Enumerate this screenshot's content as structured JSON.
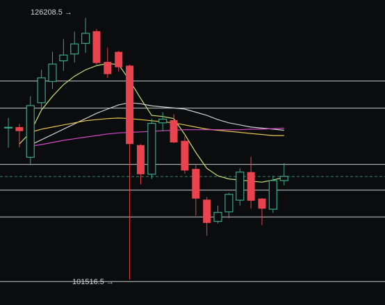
{
  "chart_data": {
    "type": "candlestick",
    "title": "",
    "grid": false,
    "price_range": [
      99500,
      127500
    ],
    "annotations": {
      "high_label": "126208.5",
      "low_label": "101516.5",
      "high_value": 126208.5,
      "low_value": 101516.5
    },
    "horizontal_levels": [
      120250,
      117690,
      112380,
      109950,
      107420,
      101320
    ],
    "current_price": 111230,
    "candles": [
      {
        "o": 115880,
        "h": 116780,
        "l": 113950,
        "c": 115880
      },
      {
        "o": 115900,
        "h": 116200,
        "l": 114000,
        "c": 115520
      },
      {
        "o": 113050,
        "h": 118800,
        "l": 112300,
        "c": 117930
      },
      {
        "o": 118200,
        "h": 121300,
        "l": 117500,
        "c": 120550
      },
      {
        "o": 120200,
        "h": 123000,
        "l": 119500,
        "c": 121850
      },
      {
        "o": 122150,
        "h": 124200,
        "l": 121200,
        "c": 122700
      },
      {
        "o": 122800,
        "h": 124900,
        "l": 122000,
        "c": 123750
      },
      {
        "o": 123800,
        "h": 126208.5,
        "l": 122900,
        "c": 124750
      },
      {
        "o": 124950,
        "h": 125150,
        "l": 121800,
        "c": 121950
      },
      {
        "o": 122050,
        "h": 123400,
        "l": 120550,
        "c": 120900
      },
      {
        "o": 123000,
        "h": 123100,
        "l": 121150,
        "c": 121550
      },
      {
        "o": 121700,
        "h": 121800,
        "l": 101516.5,
        "c": 114300
      },
      {
        "o": 114200,
        "h": 114300,
        "l": 110500,
        "c": 111450
      },
      {
        "o": 111450,
        "h": 116700,
        "l": 111000,
        "c": 116250
      },
      {
        "o": 116300,
        "h": 117300,
        "l": 115500,
        "c": 116650
      },
      {
        "o": 116550,
        "h": 117100,
        "l": 114400,
        "c": 114450
      },
      {
        "o": 114600,
        "h": 115000,
        "l": 111500,
        "c": 111800
      },
      {
        "o": 111950,
        "h": 112300,
        "l": 107550,
        "c": 109150
      },
      {
        "o": 109050,
        "h": 109300,
        "l": 105650,
        "c": 106850
      },
      {
        "o": 107000,
        "h": 108500,
        "l": 106800,
        "c": 107850
      },
      {
        "o": 107900,
        "h": 109700,
        "l": 107300,
        "c": 109550
      },
      {
        "o": 109000,
        "h": 112000,
        "l": 108500,
        "c": 111650
      },
      {
        "o": 111650,
        "h": 113100,
        "l": 108200,
        "c": 108950
      },
      {
        "o": 109150,
        "h": 109200,
        "l": 106650,
        "c": 108200
      },
      {
        "o": 108150,
        "h": 111300,
        "l": 107800,
        "c": 110850
      },
      {
        "o": 110850,
        "h": 112500,
        "l": 110400,
        "c": 111250
      }
    ],
    "moving_averages": [
      {
        "color": "#c6e27a",
        "values": [
          null,
          114300,
          115400,
          117500,
          118800,
          119900,
          120700,
          121300,
          121700,
          121900,
          121800,
          120300,
          118600,
          117000,
          116900,
          116700,
          115200,
          113500,
          112000,
          111300,
          111000,
          110900,
          110800,
          110700,
          110900,
          111150
        ]
      },
      {
        "color": "#d0d0d0",
        "values": [
          null,
          null,
          114200,
          114700,
          115200,
          115700,
          116200,
          116700,
          117200,
          117600,
          118000,
          118200,
          118100,
          117900,
          117800,
          117700,
          117600,
          117300,
          117000,
          116600,
          116300,
          116100,
          115900,
          115800,
          115700,
          115600
        ]
      },
      {
        "color": "#e6c84a",
        "values": [
          null,
          null,
          115400,
          115700,
          115900,
          116100,
          116300,
          116500,
          116600,
          116700,
          116750,
          116700,
          116600,
          116500,
          116400,
          116300,
          116100,
          115900,
          115700,
          115600,
          115500,
          115400,
          115300,
          115200,
          115100,
          115100
        ]
      },
      {
        "color": "#d64bc8",
        "values": [
          null,
          null,
          114100,
          114250,
          114450,
          114650,
          114800,
          114950,
          115100,
          115250,
          115350,
          115400,
          115450,
          115500,
          115550,
          115600,
          115650,
          115650,
          115650,
          115650,
          115650,
          115650,
          115700,
          115700,
          115750,
          115800
        ]
      }
    ],
    "colors": {
      "background": "#0b0c0e",
      "up": "#39a887",
      "down": "#e8434e",
      "level_line": "#c9cbcf",
      "current_price_line": "#2e8c74",
      "label_text": "#d4d6da"
    }
  }
}
